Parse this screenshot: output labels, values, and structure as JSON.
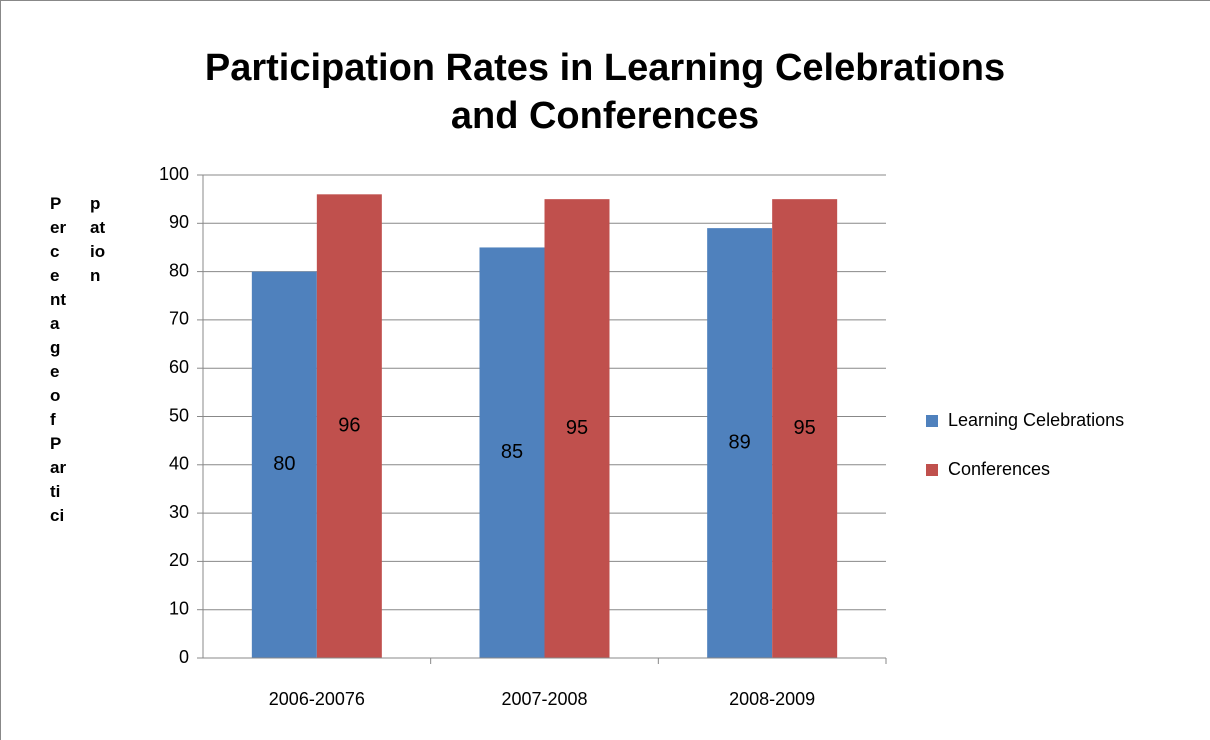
{
  "chart_data": {
    "type": "bar",
    "title": "Participation Rates in Learning Celebrations and Conferences",
    "y_label": "Percentage of Participation",
    "categories": [
      "2006-20076",
      "2007-2008",
      "2008-2009"
    ],
    "series": [
      {
        "name": "Learning Celebrations",
        "color": "#4f81bd",
        "values": [
          80,
          85,
          89
        ]
      },
      {
        "name": "Conferences",
        "color": "#c0504d",
        "values": [
          96,
          95,
          95
        ]
      }
    ],
    "ylim": [
      0,
      100
    ],
    "yticks": [
      0,
      10,
      20,
      30,
      40,
      50,
      60,
      70,
      80,
      90,
      100
    ],
    "grid": true,
    "legend": "right"
  }
}
